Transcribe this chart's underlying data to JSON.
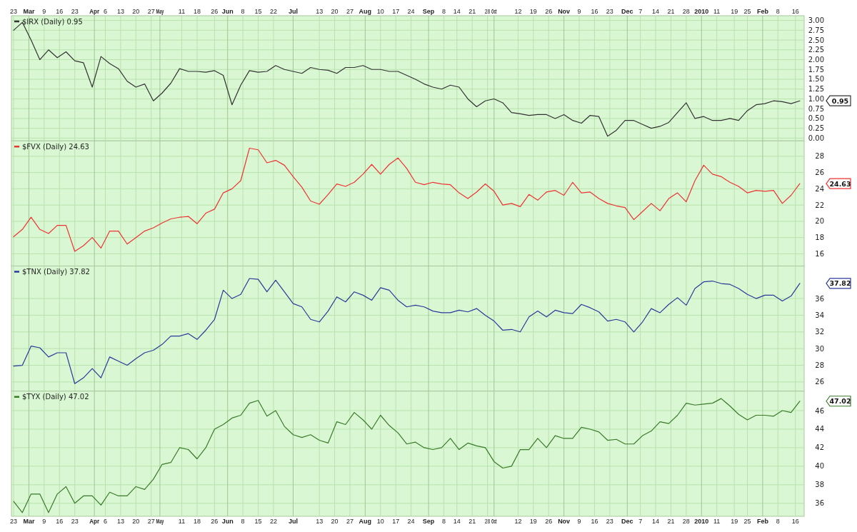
{
  "chart_data": [
    {
      "type": "line",
      "xlim": [
        "2009-02-22",
        "2010-02-20"
      ],
      "x2lim": [
        "2009-02-22",
        "2010-02-20"
      ],
      "ylim": [
        -0.07,
        3.12
      ],
      "tick_labels": "y",
      "grid": true,
      "legend": "top left",
      "xticks": [
        {
          "value": "2009-02-23",
          "label": null
        },
        {
          "value": "2009-03-02",
          "label": null
        },
        {
          "value": "2009-03-09",
          "label": null
        },
        {
          "value": "2009-03-16",
          "label": null
        },
        {
          "value": "2009-03-23",
          "label": null
        },
        {
          "value": "2009-04-01",
          "label": null
        },
        {
          "value": "2009-04-06",
          "label": null
        },
        {
          "value": "2009-04-13",
          "label": null
        },
        {
          "value": "2009-04-20",
          "label": null
        },
        {
          "value": "2009-04-27",
          "label": null
        },
        {
          "value": "2009-05-01",
          "label": null
        },
        {
          "value": "2009-05-11",
          "label": null
        },
        {
          "value": "2009-05-18",
          "label": null
        },
        {
          "value": "2009-05-26",
          "label": null
        },
        {
          "value": "2009-06-01",
          "label": null
        },
        {
          "value": "2009-06-08",
          "label": null
        },
        {
          "value": "2009-06-15",
          "label": null
        },
        {
          "value": "2009-06-22",
          "label": null
        },
        {
          "value": "2009-07-01",
          "label": null
        },
        {
          "value": "2009-07-13",
          "label": null
        },
        {
          "value": "2009-07-20",
          "label": null
        },
        {
          "value": "2009-07-27",
          "label": null
        },
        {
          "value": "2009-08-03",
          "label": null
        },
        {
          "value": "2009-08-10",
          "label": null
        },
        {
          "value": "2009-08-17",
          "label": null
        },
        {
          "value": "2009-08-24",
          "label": null
        },
        {
          "value": "2009-09-01",
          "label": null
        },
        {
          "value": "2009-09-08",
          "label": null
        },
        {
          "value": "2009-09-14",
          "label": null
        },
        {
          "value": "2009-09-21",
          "label": null
        },
        {
          "value": "2009-09-28",
          "label": null
        },
        {
          "value": "2009-10-01",
          "label": null
        },
        {
          "value": "2009-10-12",
          "label": null
        },
        {
          "value": "2009-10-19",
          "label": null
        },
        {
          "value": "2009-10-26",
          "label": null
        },
        {
          "value": "2009-11-02",
          "label": null
        },
        {
          "value": "2009-11-09",
          "label": null
        },
        {
          "value": "2009-11-16",
          "label": null
        },
        {
          "value": "2009-11-23",
          "label": null
        },
        {
          "value": "2009-12-01",
          "label": null
        },
        {
          "value": "2009-12-07",
          "label": null
        },
        {
          "value": "2009-12-14",
          "label": null
        },
        {
          "value": "2009-12-21",
          "label": null
        },
        {
          "value": "2009-12-28",
          "label": null
        },
        {
          "value": "2010-01-04",
          "label": null
        },
        {
          "value": "2010-01-11",
          "label": null
        },
        {
          "value": "2010-01-19",
          "label": null
        },
        {
          "value": "2010-01-25",
          "label": null
        },
        {
          "value": "2010-02-01",
          "label": null
        },
        {
          "value": "2010-02-08",
          "label": null
        },
        {
          "value": "2010-02-16",
          "label": null
        }
      ],
      "x2ticks": [
        {
          "value": "2009-02-23",
          "label": "23"
        },
        {
          "value": "2009-03-02",
          "label": "Mar"
        },
        {
          "value": "2009-03-09",
          "label": "9"
        },
        {
          "value": "2009-03-16",
          "label": "16"
        },
        {
          "value": "2009-03-23",
          "label": "23"
        },
        {
          "value": "2009-04-01",
          "label": "Apr"
        },
        {
          "value": "2009-04-06",
          "label": "6"
        },
        {
          "value": "2009-04-13",
          "label": "13"
        },
        {
          "value": "2009-04-20",
          "label": "20"
        },
        {
          "value": "2009-04-27",
          "label": "27"
        },
        {
          "value": "2009-05-01",
          "label": "May"
        },
        {
          "value": "2009-05-11",
          "label": "11"
        },
        {
          "value": "2009-05-18",
          "label": "18"
        },
        {
          "value": "2009-05-26",
          "label": "26"
        },
        {
          "value": "2009-06-01",
          "label": "Jun"
        },
        {
          "value": "2009-06-08",
          "label": "8"
        },
        {
          "value": "2009-06-15",
          "label": "15"
        },
        {
          "value": "2009-06-22",
          "label": "22"
        },
        {
          "value": "2009-07-01",
          "label": "Jul"
        },
        {
          "value": "2009-07-13",
          "label": "13"
        },
        {
          "value": "2009-07-20",
          "label": "20"
        },
        {
          "value": "2009-07-27",
          "label": "27"
        },
        {
          "value": "2009-08-03",
          "label": "Aug"
        },
        {
          "value": "2009-08-10",
          "label": "10"
        },
        {
          "value": "2009-08-17",
          "label": "17"
        },
        {
          "value": "2009-08-24",
          "label": "24"
        },
        {
          "value": "2009-09-01",
          "label": "Sep"
        },
        {
          "value": "2009-09-08",
          "label": "8"
        },
        {
          "value": "2009-09-14",
          "label": "14"
        },
        {
          "value": "2009-09-21",
          "label": "21"
        },
        {
          "value": "2009-09-28",
          "label": "28"
        },
        {
          "value": "2009-10-01",
          "label": "Oct"
        },
        {
          "value": "2009-10-12",
          "label": "12"
        },
        {
          "value": "2009-10-19",
          "label": "19"
        },
        {
          "value": "2009-10-26",
          "label": "26"
        },
        {
          "value": "2009-11-02",
          "label": "Nov"
        },
        {
          "value": "2009-11-09",
          "label": "9"
        },
        {
          "value": "2009-11-16",
          "label": "16"
        },
        {
          "value": "2009-11-23",
          "label": "23"
        },
        {
          "value": "2009-12-01",
          "label": "Dec"
        },
        {
          "value": "2009-12-07",
          "label": "7"
        },
        {
          "value": "2009-12-14",
          "label": "14"
        },
        {
          "value": "2009-12-21",
          "label": "21"
        },
        {
          "value": "2009-12-28",
          "label": "28"
        },
        {
          "value": "2010-01-04",
          "label": "2010"
        },
        {
          "value": "2010-01-11",
          "label": "11"
        },
        {
          "value": "2010-01-19",
          "label": "19"
        },
        {
          "value": "2010-01-25",
          "label": "25"
        },
        {
          "value": "2010-02-01",
          "label": "Feb"
        },
        {
          "value": "2010-02-08",
          "label": "8"
        },
        {
          "value": "2010-02-16",
          "label": "16"
        }
      ],
      "yticks": [
        {
          "value": 0,
          "label": "0.00"
        },
        {
          "value": 0.25,
          "label": "0.25"
        },
        {
          "value": 0.5,
          "label": "0.50"
        },
        {
          "value": 0.75,
          "label": "0.75"
        },
        {
          "value": 1,
          "label": "1.00"
        },
        {
          "value": 1.25,
          "label": "1.25"
        },
        {
          "value": 1.5,
          "label": "1.50"
        },
        {
          "value": 1.75,
          "label": "1.75"
        },
        {
          "value": 2,
          "label": "2.00"
        },
        {
          "value": 2.25,
          "label": "2.25"
        },
        {
          "value": 2.5,
          "label": "2.50"
        },
        {
          "value": 2.75,
          "label": "2.75"
        },
        {
          "value": 3,
          "label": "3.00"
        }
      ],
      "x": [
        "2009-02-23",
        "2009-02-27",
        "2009-03-03",
        "2009-03-07",
        "2009-03-11",
        "2009-03-15",
        "2009-03-19",
        "2009-03-23",
        "2009-03-27",
        "2009-03-31",
        "2009-04-04",
        "2009-04-08",
        "2009-04-12",
        "2009-04-16",
        "2009-04-20",
        "2009-04-24",
        "2009-04-28",
        "2009-05-02",
        "2009-05-06",
        "2009-05-10",
        "2009-05-14",
        "2009-05-18",
        "2009-05-22",
        "2009-05-26",
        "2009-05-30",
        "2009-06-03",
        "2009-06-07",
        "2009-06-11",
        "2009-06-15",
        "2009-06-19",
        "2009-06-23",
        "2009-06-27",
        "2009-07-01",
        "2009-07-05",
        "2009-07-09",
        "2009-07-13",
        "2009-07-17",
        "2009-07-21",
        "2009-07-25",
        "2009-07-29",
        "2009-08-02",
        "2009-08-06",
        "2009-08-10",
        "2009-08-14",
        "2009-08-18",
        "2009-08-22",
        "2009-08-26",
        "2009-08-30",
        "2009-09-03",
        "2009-09-07",
        "2009-09-11",
        "2009-09-15",
        "2009-09-19",
        "2009-09-23",
        "2009-09-27",
        "2009-10-01",
        "2009-10-05",
        "2009-10-09",
        "2009-10-13",
        "2009-10-17",
        "2009-10-21",
        "2009-10-25",
        "2009-10-29",
        "2009-11-02",
        "2009-11-06",
        "2009-11-10",
        "2009-11-14",
        "2009-11-18",
        "2009-11-22",
        "2009-11-26",
        "2009-11-30",
        "2009-12-04",
        "2009-12-08",
        "2009-12-12",
        "2009-12-16",
        "2009-12-20",
        "2009-12-24",
        "2009-12-28",
        "2010-01-01",
        "2010-01-05",
        "2010-01-09",
        "2010-01-13",
        "2010-01-17",
        "2010-01-21",
        "2010-01-25",
        "2010-01-29",
        "2010-02-02",
        "2010-02-06",
        "2010-02-10",
        "2010-02-14",
        "2010-02-18"
      ],
      "series": [
        {
          "name": "$IRX (Daily) 0.95",
          "color": "#333333",
          "values": [
            2.75,
            2.95,
            2.5,
            2.0,
            2.25,
            2.05,
            2.2,
            1.97,
            1.92,
            1.3,
            2.08,
            1.9,
            1.77,
            1.45,
            1.3,
            1.38,
            0.95,
            1.15,
            1.4,
            1.77,
            1.7,
            1.7,
            1.68,
            1.72,
            1.6,
            0.85,
            1.35,
            1.72,
            1.68,
            1.7,
            1.85,
            1.75,
            1.7,
            1.65,
            1.8,
            1.75,
            1.73,
            1.65,
            1.8,
            1.8,
            1.85,
            1.75,
            1.75,
            1.7,
            1.7,
            1.6,
            1.5,
            1.38,
            1.3,
            1.25,
            1.35,
            1.3,
            1.0,
            0.8,
            0.95,
            1.0,
            0.9,
            0.65,
            0.62,
            0.58,
            0.6,
            0.6,
            0.5,
            0.6,
            0.45,
            0.38,
            0.58,
            0.55,
            0.05,
            0.2,
            0.45,
            0.45,
            0.35,
            0.25,
            0.3,
            0.4,
            0.65,
            0.9,
            0.5,
            0.55,
            0.45,
            0.45,
            0.5,
            0.45,
            0.7,
            0.85,
            0.88,
            0.95,
            0.93,
            0.88,
            0.95
          ]
        }
      ],
      "annotations": [
        "0.95"
      ]
    },
    {
      "type": "line",
      "xlim": [
        "2009-02-22",
        "2010-02-20"
      ],
      "ylim": [
        14.5,
        29.9
      ],
      "tick_labels": "y",
      "grid": true,
      "legend": "top left",
      "xticks": [
        {
          "value": "2009-02-23",
          "label": null
        },
        {
          "value": "2009-03-02",
          "label": null
        },
        {
          "value": "2009-03-09",
          "label": null
        },
        {
          "value": "2009-03-16",
          "label": null
        },
        {
          "value": "2009-03-23",
          "label": null
        },
        {
          "value": "2009-04-01",
          "label": null
        },
        {
          "value": "2009-04-06",
          "label": null
        },
        {
          "value": "2009-04-13",
          "label": null
        },
        {
          "value": "2009-04-20",
          "label": null
        },
        {
          "value": "2009-04-27",
          "label": null
        },
        {
          "value": "2009-05-01",
          "label": null
        },
        {
          "value": "2009-05-11",
          "label": null
        },
        {
          "value": "2009-05-18",
          "label": null
        },
        {
          "value": "2009-05-26",
          "label": null
        },
        {
          "value": "2009-06-01",
          "label": null
        },
        {
          "value": "2009-06-08",
          "label": null
        },
        {
          "value": "2009-06-15",
          "label": null
        },
        {
          "value": "2009-06-22",
          "label": null
        },
        {
          "value": "2009-07-01",
          "label": null
        },
        {
          "value": "2009-07-13",
          "label": null
        },
        {
          "value": "2009-07-20",
          "label": null
        },
        {
          "value": "2009-07-27",
          "label": null
        },
        {
          "value": "2009-08-03",
          "label": null
        },
        {
          "value": "2009-08-10",
          "label": null
        },
        {
          "value": "2009-08-17",
          "label": null
        },
        {
          "value": "2009-08-24",
          "label": null
        },
        {
          "value": "2009-09-01",
          "label": null
        },
        {
          "value": "2009-09-08",
          "label": null
        },
        {
          "value": "2009-09-14",
          "label": null
        },
        {
          "value": "2009-09-21",
          "label": null
        },
        {
          "value": "2009-09-28",
          "label": null
        },
        {
          "value": "2009-10-01",
          "label": null
        },
        {
          "value": "2009-10-12",
          "label": null
        },
        {
          "value": "2009-10-19",
          "label": null
        },
        {
          "value": "2009-10-26",
          "label": null
        },
        {
          "value": "2009-11-02",
          "label": null
        },
        {
          "value": "2009-11-09",
          "label": null
        },
        {
          "value": "2009-11-16",
          "label": null
        },
        {
          "value": "2009-11-23",
          "label": null
        },
        {
          "value": "2009-12-01",
          "label": null
        },
        {
          "value": "2009-12-07",
          "label": null
        },
        {
          "value": "2009-12-14",
          "label": null
        },
        {
          "value": "2009-12-21",
          "label": null
        },
        {
          "value": "2009-12-28",
          "label": null
        },
        {
          "value": "2010-01-04",
          "label": null
        },
        {
          "value": "2010-01-11",
          "label": null
        },
        {
          "value": "2010-01-19",
          "label": null
        },
        {
          "value": "2010-01-25",
          "label": null
        },
        {
          "value": "2010-02-01",
          "label": null
        },
        {
          "value": "2010-02-08",
          "label": null
        },
        {
          "value": "2010-02-16",
          "label": null
        }
      ],
      "yticks": [
        16,
        18,
        20,
        22,
        24,
        26,
        28
      ],
      "x": [
        "2009-02-23",
        "2009-02-27",
        "2009-03-03",
        "2009-03-07",
        "2009-03-11",
        "2009-03-15",
        "2009-03-19",
        "2009-03-23",
        "2009-03-27",
        "2009-03-31",
        "2009-04-04",
        "2009-04-08",
        "2009-04-12",
        "2009-04-16",
        "2009-04-20",
        "2009-04-24",
        "2009-04-28",
        "2009-05-02",
        "2009-05-06",
        "2009-05-10",
        "2009-05-14",
        "2009-05-18",
        "2009-05-22",
        "2009-05-26",
        "2009-05-30",
        "2009-06-03",
        "2009-06-07",
        "2009-06-11",
        "2009-06-15",
        "2009-06-19",
        "2009-06-23",
        "2009-06-27",
        "2009-07-01",
        "2009-07-05",
        "2009-07-09",
        "2009-07-13",
        "2009-07-17",
        "2009-07-21",
        "2009-07-25",
        "2009-07-29",
        "2009-08-02",
        "2009-08-06",
        "2009-08-10",
        "2009-08-14",
        "2009-08-18",
        "2009-08-22",
        "2009-08-26",
        "2009-08-30",
        "2009-09-03",
        "2009-09-07",
        "2009-09-11",
        "2009-09-15",
        "2009-09-19",
        "2009-09-23",
        "2009-09-27",
        "2009-10-01",
        "2009-10-05",
        "2009-10-09",
        "2009-10-13",
        "2009-10-17",
        "2009-10-21",
        "2009-10-25",
        "2009-10-29",
        "2009-11-02",
        "2009-11-06",
        "2009-11-10",
        "2009-11-14",
        "2009-11-18",
        "2009-11-22",
        "2009-11-26",
        "2009-11-30",
        "2009-12-04",
        "2009-12-08",
        "2009-12-12",
        "2009-12-16",
        "2009-12-20",
        "2009-12-24",
        "2009-12-28",
        "2010-01-01",
        "2010-01-05",
        "2010-01-09",
        "2010-01-13",
        "2010-01-17",
        "2010-01-21",
        "2010-01-25",
        "2010-01-29",
        "2010-02-02",
        "2010-02-06",
        "2010-02-10",
        "2010-02-14",
        "2010-02-18"
      ],
      "series": [
        {
          "name": "$FVX (Daily) 24.63",
          "color": "#ee3333",
          "values": [
            18.1,
            19.0,
            20.5,
            19.0,
            18.5,
            19.5,
            19.5,
            16.3,
            17.0,
            18.0,
            16.7,
            18.8,
            18.8,
            17.2,
            18.0,
            18.8,
            19.2,
            19.8,
            20.3,
            20.5,
            20.6,
            19.7,
            21.0,
            21.5,
            23.5,
            24.0,
            25.0,
            29.0,
            28.8,
            27.2,
            27.5,
            26.9,
            25.5,
            24.2,
            22.5,
            22.1,
            23.3,
            24.6,
            24.3,
            24.8,
            25.8,
            27.0,
            25.8,
            27.0,
            27.8,
            26.5,
            24.8,
            24.5,
            24.8,
            24.6,
            24.5,
            23.5,
            22.8,
            23.6,
            24.6,
            23.7,
            22.0,
            22.2,
            21.8,
            23.3,
            22.6,
            23.6,
            23.8,
            23.2,
            24.8,
            23.5,
            23.6,
            22.8,
            22.2,
            21.9,
            21.7,
            20.2,
            21.2,
            22.2,
            21.3,
            22.8,
            23.5,
            22.4,
            25.0,
            26.9,
            25.8,
            25.5,
            24.8,
            24.3,
            23.5,
            23.8,
            23.7,
            23.8,
            22.2,
            23.2,
            24.63
          ]
        }
      ],
      "annotations": [
        "24.63"
      ]
    },
    {
      "type": "line",
      "xlim": [
        "2009-02-22",
        "2010-02-20"
      ],
      "ylim": [
        24.9,
        39.9
      ],
      "tick_labels": "y",
      "grid": true,
      "legend": "top left",
      "xticks": [
        {
          "value": "2009-02-23",
          "label": null
        },
        {
          "value": "2009-03-02",
          "label": null
        },
        {
          "value": "2009-03-09",
          "label": null
        },
        {
          "value": "2009-03-16",
          "label": null
        },
        {
          "value": "2009-03-23",
          "label": null
        },
        {
          "value": "2009-04-01",
          "label": null
        },
        {
          "value": "2009-04-06",
          "label": null
        },
        {
          "value": "2009-04-13",
          "label": null
        },
        {
          "value": "2009-04-20",
          "label": null
        },
        {
          "value": "2009-04-27",
          "label": null
        },
        {
          "value": "2009-05-01",
          "label": null
        },
        {
          "value": "2009-05-11",
          "label": null
        },
        {
          "value": "2009-05-18",
          "label": null
        },
        {
          "value": "2009-05-26",
          "label": null
        },
        {
          "value": "2009-06-01",
          "label": null
        },
        {
          "value": "2009-06-08",
          "label": null
        },
        {
          "value": "2009-06-15",
          "label": null
        },
        {
          "value": "2009-06-22",
          "label": null
        },
        {
          "value": "2009-07-01",
          "label": null
        },
        {
          "value": "2009-07-13",
          "label": null
        },
        {
          "value": "2009-07-20",
          "label": null
        },
        {
          "value": "2009-07-27",
          "label": null
        },
        {
          "value": "2009-08-03",
          "label": null
        },
        {
          "value": "2009-08-10",
          "label": null
        },
        {
          "value": "2009-08-17",
          "label": null
        },
        {
          "value": "2009-08-24",
          "label": null
        },
        {
          "value": "2009-09-01",
          "label": null
        },
        {
          "value": "2009-09-08",
          "label": null
        },
        {
          "value": "2009-09-14",
          "label": null
        },
        {
          "value": "2009-09-21",
          "label": null
        },
        {
          "value": "2009-09-28",
          "label": null
        },
        {
          "value": "2009-10-01",
          "label": null
        },
        {
          "value": "2009-10-12",
          "label": null
        },
        {
          "value": "2009-10-19",
          "label": null
        },
        {
          "value": "2009-10-26",
          "label": null
        },
        {
          "value": "2009-11-02",
          "label": null
        },
        {
          "value": "2009-11-09",
          "label": null
        },
        {
          "value": "2009-11-16",
          "label": null
        },
        {
          "value": "2009-11-23",
          "label": null
        },
        {
          "value": "2009-12-01",
          "label": null
        },
        {
          "value": "2009-12-07",
          "label": null
        },
        {
          "value": "2009-12-14",
          "label": null
        },
        {
          "value": "2009-12-21",
          "label": null
        },
        {
          "value": "2009-12-28",
          "label": null
        },
        {
          "value": "2010-01-04",
          "label": null
        },
        {
          "value": "2010-01-11",
          "label": null
        },
        {
          "value": "2010-01-19",
          "label": null
        },
        {
          "value": "2010-01-25",
          "label": null
        },
        {
          "value": "2010-02-01",
          "label": null
        },
        {
          "value": "2010-02-08",
          "label": null
        },
        {
          "value": "2010-02-16",
          "label": null
        }
      ],
      "yticks": [
        26,
        28,
        30,
        32,
        34,
        36
      ],
      "x": [
        "2009-02-23",
        "2009-02-27",
        "2009-03-03",
        "2009-03-07",
        "2009-03-11",
        "2009-03-15",
        "2009-03-19",
        "2009-03-23",
        "2009-03-27",
        "2009-03-31",
        "2009-04-04",
        "2009-04-08",
        "2009-04-12",
        "2009-04-16",
        "2009-04-20",
        "2009-04-24",
        "2009-04-28",
        "2009-05-02",
        "2009-05-06",
        "2009-05-10",
        "2009-05-14",
        "2009-05-18",
        "2009-05-22",
        "2009-05-26",
        "2009-05-30",
        "2009-06-03",
        "2009-06-07",
        "2009-06-11",
        "2009-06-15",
        "2009-06-19",
        "2009-06-23",
        "2009-06-27",
        "2009-07-01",
        "2009-07-05",
        "2009-07-09",
        "2009-07-13",
        "2009-07-17",
        "2009-07-21",
        "2009-07-25",
        "2009-07-29",
        "2009-08-02",
        "2009-08-06",
        "2009-08-10",
        "2009-08-14",
        "2009-08-18",
        "2009-08-22",
        "2009-08-26",
        "2009-08-30",
        "2009-09-03",
        "2009-09-07",
        "2009-09-11",
        "2009-09-15",
        "2009-09-19",
        "2009-09-23",
        "2009-09-27",
        "2009-10-01",
        "2009-10-05",
        "2009-10-09",
        "2009-10-13",
        "2009-10-17",
        "2009-10-21",
        "2009-10-25",
        "2009-10-29",
        "2009-11-02",
        "2009-11-06",
        "2009-11-10",
        "2009-11-14",
        "2009-11-18",
        "2009-11-22",
        "2009-11-26",
        "2009-11-30",
        "2009-12-04",
        "2009-12-08",
        "2009-12-12",
        "2009-12-16",
        "2009-12-20",
        "2009-12-24",
        "2009-12-28",
        "2010-01-01",
        "2010-01-05",
        "2010-01-09",
        "2010-01-13",
        "2010-01-17",
        "2010-01-21",
        "2010-01-25",
        "2010-01-29",
        "2010-02-02",
        "2010-02-06",
        "2010-02-10",
        "2010-02-14",
        "2010-02-18"
      ],
      "series": [
        {
          "name": "$TNX (Daily) 37.82",
          "color": "#2a3a9a",
          "values": [
            27.9,
            28.0,
            30.3,
            30.1,
            29.0,
            29.5,
            29.5,
            25.8,
            26.5,
            27.6,
            26.5,
            29.0,
            28.5,
            28.0,
            28.8,
            29.5,
            29.8,
            30.5,
            31.5,
            31.5,
            31.8,
            31.1,
            32.2,
            33.5,
            37.0,
            36.0,
            36.5,
            38.4,
            38.3,
            36.8,
            38.2,
            36.8,
            35.4,
            35.0,
            33.5,
            33.2,
            34.5,
            36.2,
            35.6,
            36.8,
            36.4,
            35.8,
            37.3,
            37.0,
            35.8,
            35.0,
            35.2,
            35.0,
            34.5,
            34.3,
            34.3,
            34.6,
            34.4,
            34.8,
            34.0,
            33.3,
            32.2,
            32.3,
            32.0,
            33.8,
            34.5,
            33.8,
            34.6,
            34.3,
            34.2,
            35.3,
            34.9,
            34.4,
            33.3,
            33.5,
            33.2,
            32.0,
            33.2,
            34.8,
            34.3,
            35.3,
            36.1,
            35.2,
            37.2,
            38.0,
            38.1,
            37.8,
            37.7,
            37.2,
            36.5,
            36.0,
            36.4,
            36.4,
            35.7,
            36.3,
            37.82
          ]
        }
      ],
      "annotations": [
        "37.82"
      ]
    },
    {
      "type": "line",
      "xlim": [
        "2009-02-22",
        "2010-02-20"
      ],
      "ylim": [
        34.6,
        48.1
      ],
      "grid": true,
      "legend": "top left",
      "xticks": [
        {
          "value": "2009-02-23",
          "label": "23"
        },
        {
          "value": "2009-03-02",
          "label": "Mar"
        },
        {
          "value": "2009-03-09",
          "label": "9"
        },
        {
          "value": "2009-03-16",
          "label": "16"
        },
        {
          "value": "2009-03-23",
          "label": "23"
        },
        {
          "value": "2009-04-01",
          "label": "Apr"
        },
        {
          "value": "2009-04-06",
          "label": "6"
        },
        {
          "value": "2009-04-13",
          "label": "13"
        },
        {
          "value": "2009-04-20",
          "label": "20"
        },
        {
          "value": "2009-04-27",
          "label": "27"
        },
        {
          "value": "2009-05-01",
          "label": "May"
        },
        {
          "value": "2009-05-11",
          "label": "11"
        },
        {
          "value": "2009-05-18",
          "label": "18"
        },
        {
          "value": "2009-05-26",
          "label": "26"
        },
        {
          "value": "2009-06-01",
          "label": "Jun"
        },
        {
          "value": "2009-06-08",
          "label": "8"
        },
        {
          "value": "2009-06-15",
          "label": "15"
        },
        {
          "value": "2009-06-22",
          "label": "22"
        },
        {
          "value": "2009-07-01",
          "label": "Jul"
        },
        {
          "value": "2009-07-13",
          "label": "13"
        },
        {
          "value": "2009-07-20",
          "label": "20"
        },
        {
          "value": "2009-07-27",
          "label": "27"
        },
        {
          "value": "2009-08-03",
          "label": "Aug"
        },
        {
          "value": "2009-08-10",
          "label": "10"
        },
        {
          "value": "2009-08-17",
          "label": "17"
        },
        {
          "value": "2009-08-24",
          "label": "24"
        },
        {
          "value": "2009-09-01",
          "label": "Sep"
        },
        {
          "value": "2009-09-08",
          "label": "8"
        },
        {
          "value": "2009-09-14",
          "label": "14"
        },
        {
          "value": "2009-09-21",
          "label": "21"
        },
        {
          "value": "2009-09-28",
          "label": "28"
        },
        {
          "value": "2009-10-01",
          "label": "Oct"
        },
        {
          "value": "2009-10-12",
          "label": "12"
        },
        {
          "value": "2009-10-19",
          "label": "19"
        },
        {
          "value": "2009-10-26",
          "label": "26"
        },
        {
          "value": "2009-11-02",
          "label": "Nov"
        },
        {
          "value": "2009-11-09",
          "label": "9"
        },
        {
          "value": "2009-11-16",
          "label": "16"
        },
        {
          "value": "2009-11-23",
          "label": "23"
        },
        {
          "value": "2009-12-01",
          "label": "Dec"
        },
        {
          "value": "2009-12-07",
          "label": "7"
        },
        {
          "value": "2009-12-14",
          "label": "14"
        },
        {
          "value": "2009-12-21",
          "label": "21"
        },
        {
          "value": "2009-12-28",
          "label": "28"
        },
        {
          "value": "2010-01-04",
          "label": "2010"
        },
        {
          "value": "2010-01-11",
          "label": "11"
        },
        {
          "value": "2010-01-19",
          "label": "19"
        },
        {
          "value": "2010-01-25",
          "label": "25"
        },
        {
          "value": "2010-02-01",
          "label": "Feb"
        },
        {
          "value": "2010-02-08",
          "label": "8"
        },
        {
          "value": "2010-02-16",
          "label": "16"
        }
      ],
      "yticks": [
        36,
        38,
        40,
        42,
        44,
        46
      ],
      "x": [
        "2009-02-23",
        "2009-02-27",
        "2009-03-03",
        "2009-03-07",
        "2009-03-11",
        "2009-03-15",
        "2009-03-19",
        "2009-03-23",
        "2009-03-27",
        "2009-03-31",
        "2009-04-04",
        "2009-04-08",
        "2009-04-12",
        "2009-04-16",
        "2009-04-20",
        "2009-04-24",
        "2009-04-28",
        "2009-05-02",
        "2009-05-06",
        "2009-05-10",
        "2009-05-14",
        "2009-05-18",
        "2009-05-22",
        "2009-05-26",
        "2009-05-30",
        "2009-06-03",
        "2009-06-07",
        "2009-06-11",
        "2009-06-15",
        "2009-06-19",
        "2009-06-23",
        "2009-06-27",
        "2009-07-01",
        "2009-07-05",
        "2009-07-09",
        "2009-07-13",
        "2009-07-17",
        "2009-07-21",
        "2009-07-25",
        "2009-07-29",
        "2009-08-02",
        "2009-08-06",
        "2009-08-10",
        "2009-08-14",
        "2009-08-18",
        "2009-08-22",
        "2009-08-26",
        "2009-08-30",
        "2009-09-03",
        "2009-09-07",
        "2009-09-11",
        "2009-09-15",
        "2009-09-19",
        "2009-09-23",
        "2009-09-27",
        "2009-10-01",
        "2009-10-05",
        "2009-10-09",
        "2009-10-13",
        "2009-10-17",
        "2009-10-21",
        "2009-10-25",
        "2009-10-29",
        "2009-11-02",
        "2009-11-06",
        "2009-11-10",
        "2009-11-14",
        "2009-11-18",
        "2009-11-22",
        "2009-11-26",
        "2009-11-30",
        "2009-12-04",
        "2009-12-08",
        "2009-12-12",
        "2009-12-16",
        "2009-12-20",
        "2009-12-24",
        "2009-12-28",
        "2010-01-01",
        "2010-01-05",
        "2010-01-09",
        "2010-01-13",
        "2010-01-17",
        "2010-01-21",
        "2010-01-25",
        "2010-01-29",
        "2010-02-02",
        "2010-02-06",
        "2010-02-10",
        "2010-02-14",
        "2010-02-18"
      ],
      "series": [
        {
          "name": "$TYX (Daily) 47.02",
          "color": "#3a7a2a",
          "values": [
            36.2,
            35.0,
            37.0,
            37.0,
            35.0,
            37.0,
            37.8,
            36.0,
            36.8,
            36.8,
            35.8,
            37.2,
            36.8,
            36.8,
            37.8,
            37.5,
            38.6,
            40.2,
            40.4,
            42.0,
            41.8,
            40.8,
            42.0,
            44.0,
            44.5,
            45.2,
            45.5,
            46.8,
            47.1,
            45.4,
            46.0,
            44.3,
            43.4,
            43.1,
            43.4,
            42.8,
            42.5,
            44.8,
            44.5,
            45.8,
            45.0,
            44.0,
            45.5,
            44.4,
            43.6,
            42.4,
            42.6,
            42.0,
            41.8,
            42.0,
            43.0,
            41.8,
            42.5,
            42.2,
            42.0,
            40.5,
            39.8,
            40.0,
            41.8,
            41.8,
            43.0,
            42.0,
            43.3,
            43.0,
            43.0,
            44.2,
            44.0,
            43.7,
            42.8,
            42.9,
            42.4,
            42.4,
            43.3,
            43.8,
            44.8,
            44.6,
            45.5,
            46.8,
            46.6,
            46.7,
            46.8,
            47.3,
            46.5,
            45.6,
            45.0,
            45.5,
            45.5,
            45.4,
            46.0,
            45.8,
            47.02
          ]
        }
      ],
      "annotations": [
        "47.02"
      ]
    }
  ]
}
